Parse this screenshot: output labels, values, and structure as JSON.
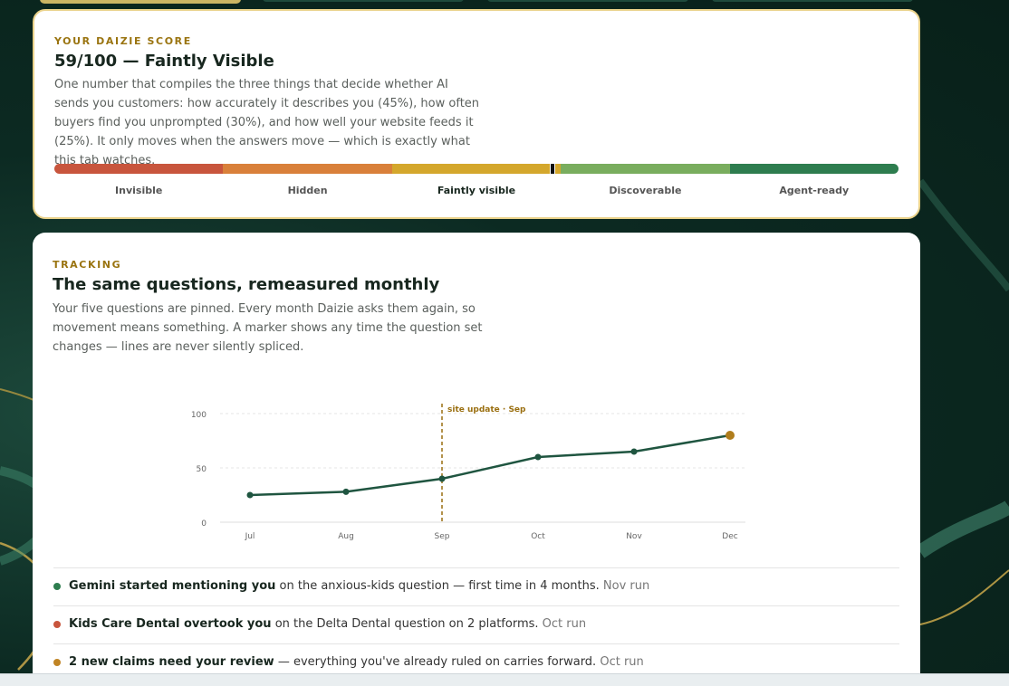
{
  "score_card": {
    "eyebrow": "YOUR DAIZIE SCORE",
    "title": "59/100 — Faintly Visible",
    "description": "One number that compiles the three things that decide whether AI sends you customers: how accurately it describes you (45%), how often buyers find you unprompted (30%), and how well your website feeds it (25%). It only moves when the answers move — which is exactly what this tab watches.",
    "score": 59,
    "scale": [
      0,
      100
    ],
    "bands": [
      {
        "label": "Invisible",
        "color": "#c8553d"
      },
      {
        "label": "Hidden",
        "color": "#d9803a"
      },
      {
        "label": "Faintly visible",
        "color": "#d4a72c"
      },
      {
        "label": "Discoverable",
        "color": "#79ad5e"
      },
      {
        "label": "Agent-ready",
        "color": "#2e7d4f"
      }
    ]
  },
  "tracking": {
    "eyebrow": "TRACKING",
    "title": "The same questions, remeasured monthly",
    "description": "Your five questions are pinned. Every month Daizie asks them again, so movement means something. A marker shows any time the question set changes — lines are never silently spliced.",
    "chart_data": {
      "type": "line",
      "categories": [
        "Jul",
        "Aug",
        "Sep",
        "Oct",
        "Nov",
        "Dec"
      ],
      "series": [
        {
          "color": "#1f5540",
          "values": [
            25,
            28,
            40,
            60,
            65,
            80
          ]
        }
      ],
      "last_point_color": "#b07d1c",
      "ylim": [
        0,
        100
      ],
      "yticks": [
        0,
        50,
        100
      ],
      "grid": true,
      "annotation": {
        "at": "Sep",
        "label": "site update · Sep",
        "color": "#9a6f10"
      }
    },
    "events": [
      {
        "color": "#2e7d4f",
        "headline": "Gemini started mentioning you",
        "text": "on the anxious-kids question — first time in 4 months.",
        "when": "Nov run"
      },
      {
        "color": "#c8553d",
        "headline": "Kids Care Dental overtook you",
        "text": "on the Delta Dental question on 2 platforms.",
        "when": "Oct run"
      },
      {
        "color": "#c08424",
        "headline": "2 new claims need your review",
        "text": "— everything you've already ruled on carries forward.",
        "when": "Oct run"
      }
    ]
  }
}
